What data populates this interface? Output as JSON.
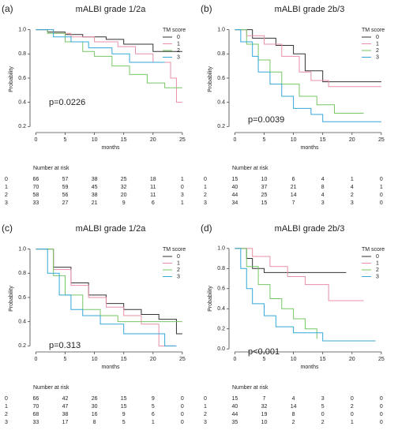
{
  "chart_data": [
    {
      "type": "line",
      "panel": "(a)",
      "title": "mALBI grade 1/2a",
      "annotation": "p=0.0226",
      "x_label": "months",
      "y_label": "Probability",
      "legend_title": "TM score",
      "xlim": [
        -1,
        26.5
      ],
      "xticks": [
        0,
        5,
        10,
        15,
        20,
        25
      ],
      "ylim": [
        0.15,
        1.03
      ],
      "yticks": [
        {
          "value": 0.2,
          "label": "0.2"
        },
        {
          "value": 0.4,
          "label": "0.4"
        },
        {
          "value": 0.6,
          "label": "0.6"
        },
        {
          "value": 0.8,
          "label": "0.8"
        },
        {
          "value": 1,
          "label": "1.0"
        }
      ],
      "series": [
        {
          "name": "0",
          "color": "#333333",
          "x": [
            0,
            2,
            5,
            8,
            12,
            15,
            20,
            25
          ],
          "values": [
            1,
            0.98,
            0.96,
            0.94,
            0.92,
            0.88,
            0.82,
            0.82
          ]
        },
        {
          "name": "1",
          "color": "#e88fa5",
          "x": [
            0,
            3,
            6,
            10,
            14,
            17,
            20,
            23,
            24,
            25
          ],
          "values": [
            1,
            0.97,
            0.94,
            0.9,
            0.86,
            0.8,
            0.73,
            0.6,
            0.4,
            0.4
          ]
        },
        {
          "name": "2",
          "color": "#77c766",
          "x": [
            0,
            2,
            5,
            8,
            10,
            13,
            16,
            19,
            22,
            25
          ],
          "values": [
            1,
            0.97,
            0.9,
            0.82,
            0.78,
            0.7,
            0.63,
            0.56,
            0.52,
            0.52
          ]
        },
        {
          "name": "3",
          "color": "#33a8d8",
          "x": [
            0,
            3,
            6,
            9,
            13,
            16,
            22
          ],
          "values": [
            1,
            0.94,
            0.9,
            0.85,
            0.8,
            0.73,
            0.73
          ]
        }
      ],
      "risk_table": {
        "title": "Number at risk",
        "rows": [
          [
            66,
            57,
            38,
            25,
            18,
            1
          ],
          [
            70,
            59,
            45,
            32,
            11,
            0
          ],
          [
            58,
            56,
            38,
            20,
            11,
            3
          ],
          [
            33,
            27,
            21,
            9,
            6,
            1
          ]
        ]
      }
    },
    {
      "type": "line",
      "panel": "(b)",
      "title": "mALBI grade 2b/3",
      "annotation": "p=0.0039",
      "x_label": "months",
      "y_label": "Probability",
      "legend_title": "TM score",
      "xlim": [
        -1,
        26.5
      ],
      "xticks": [
        0,
        5,
        10,
        15,
        20,
        25
      ],
      "ylim": [
        0.15,
        1.03
      ],
      "yticks": [
        {
          "value": 0.2,
          "label": "0.2"
        },
        {
          "value": 0.4,
          "label": "0.4"
        },
        {
          "value": 0.6,
          "label": "0.6"
        },
        {
          "value": 0.8,
          "label": "0.8"
        },
        {
          "value": 1,
          "label": "1.0"
        }
      ],
      "series": [
        {
          "name": "0",
          "color": "#333333",
          "x": [
            0,
            3,
            7,
            10,
            12,
            15,
            25
          ],
          "values": [
            1,
            0.93,
            0.87,
            0.8,
            0.66,
            0.57,
            0.57
          ]
        },
        {
          "name": "1",
          "color": "#e88fa5",
          "x": [
            0,
            2,
            5,
            8,
            11,
            13,
            16,
            25
          ],
          "values": [
            1,
            0.95,
            0.88,
            0.78,
            0.65,
            0.58,
            0.53,
            0.53
          ]
        },
        {
          "name": "2",
          "color": "#77c766",
          "x": [
            0,
            2,
            4,
            6,
            8,
            11,
            14,
            17,
            22
          ],
          "values": [
            1,
            0.88,
            0.75,
            0.65,
            0.55,
            0.45,
            0.38,
            0.31,
            0.31
          ]
        },
        {
          "name": "3",
          "color": "#33a8d8",
          "x": [
            0,
            1,
            3,
            4,
            6,
            8,
            10,
            13,
            15,
            25
          ],
          "values": [
            1,
            0.9,
            0.78,
            0.65,
            0.55,
            0.45,
            0.35,
            0.3,
            0.24,
            0.24
          ]
        }
      ],
      "risk_table": {
        "title": "Number at risk",
        "rows": [
          [
            15,
            10,
            6,
            4,
            1,
            0
          ],
          [
            40,
            37,
            21,
            8,
            4,
            1
          ],
          [
            44,
            25,
            14,
            4,
            2,
            0
          ],
          [
            34,
            15,
            7,
            3,
            3,
            0
          ]
        ]
      }
    },
    {
      "type": "line",
      "panel": "(c)",
      "title": "mALBI grade 1/2a",
      "annotation": "p=0.313",
      "x_label": "months",
      "y_label": "Probability",
      "legend_title": "TM score",
      "xlim": [
        -1,
        26.5
      ],
      "xticks": [
        0,
        5,
        10,
        15,
        20,
        25
      ],
      "ylim": [
        0.15,
        1.03
      ],
      "yticks": [
        {
          "value": 0.2,
          "label": "0.2"
        },
        {
          "value": 0.4,
          "label": "0.4"
        },
        {
          "value": 0.6,
          "label": "0.6"
        },
        {
          "value": 0.8,
          "label": "0.8"
        },
        {
          "value": 1,
          "label": "1.0"
        }
      ],
      "series": [
        {
          "name": "0",
          "color": "#333333",
          "x": [
            0,
            3,
            6,
            9,
            12,
            15,
            18,
            21,
            24,
            25
          ],
          "values": [
            1,
            0.85,
            0.72,
            0.62,
            0.55,
            0.5,
            0.46,
            0.42,
            0.3,
            0.3
          ]
        },
        {
          "name": "1",
          "color": "#e88fa5",
          "x": [
            0,
            3,
            6,
            9,
            12,
            15,
            18,
            21,
            24
          ],
          "values": [
            1,
            0.83,
            0.7,
            0.6,
            0.52,
            0.45,
            0.38,
            0.2,
            0.2
          ]
        },
        {
          "name": "2",
          "color": "#77c766",
          "x": [
            0,
            3,
            5,
            8,
            11,
            14,
            20,
            25
          ],
          "values": [
            1,
            0.78,
            0.62,
            0.5,
            0.45,
            0.4,
            0.4,
            0.4
          ]
        },
        {
          "name": "3",
          "color": "#33a8d8",
          "x": [
            0,
            2,
            4,
            6,
            8,
            11,
            15,
            20,
            22,
            24
          ],
          "values": [
            1,
            0.8,
            0.62,
            0.5,
            0.45,
            0.38,
            0.3,
            0.3,
            0.2,
            0.2
          ]
        }
      ],
      "risk_table": {
        "title": "Number at risk",
        "rows": [
          [
            66,
            42,
            26,
            15,
            9,
            0
          ],
          [
            70,
            47,
            30,
            15,
            5,
            0
          ],
          [
            68,
            38,
            16,
            9,
            6,
            0
          ],
          [
            33,
            17,
            8,
            5,
            1,
            0
          ]
        ]
      }
    },
    {
      "type": "line",
      "panel": "(d)",
      "title": "mALBI grade 2b/3",
      "annotation": "p<0.001",
      "x_label": "months",
      "y_label": "Probability",
      "legend_title": "TM score",
      "xlim": [
        -1,
        26.5
      ],
      "xticks": [
        0,
        5,
        10,
        15,
        20,
        25
      ],
      "ylim": [
        -0.03,
        1.03
      ],
      "yticks": [
        {
          "value": 0,
          "label": "0.0"
        },
        {
          "value": 0.2,
          "label": "0.2"
        },
        {
          "value": 0.4,
          "label": "0.4"
        },
        {
          "value": 0.6,
          "label": "0.6"
        },
        {
          "value": 0.8,
          "label": "0.8"
        },
        {
          "value": 1,
          "label": "1.0"
        }
      ],
      "series": [
        {
          "name": "0",
          "color": "#333333",
          "x": [
            0,
            2,
            3,
            5,
            19
          ],
          "values": [
            1,
            0.9,
            0.8,
            0.76,
            0.76
          ]
        },
        {
          "name": "1",
          "color": "#e88fa5",
          "x": [
            0,
            3,
            6,
            9,
            12,
            16,
            22
          ],
          "values": [
            1,
            0.92,
            0.82,
            0.72,
            0.64,
            0.48,
            0.48
          ]
        },
        {
          "name": "2",
          "color": "#77c766",
          "x": [
            0,
            2,
            4,
            6,
            8,
            10,
            12,
            14
          ],
          "values": [
            1,
            0.82,
            0.64,
            0.5,
            0.4,
            0.3,
            0.2,
            0.1
          ]
        },
        {
          "name": "3",
          "color": "#33a8d8",
          "x": [
            0,
            1,
            2,
            3,
            5,
            7,
            10,
            15,
            24
          ],
          "values": [
            1,
            0.8,
            0.6,
            0.45,
            0.33,
            0.22,
            0.16,
            0.08,
            0.08
          ]
        }
      ],
      "risk_table": {
        "title": "Number at risk",
        "rows": [
          [
            15,
            7,
            4,
            3,
            0,
            0
          ],
          [
            40,
            32,
            14,
            5,
            2,
            0
          ],
          [
            44,
            19,
            8,
            0,
            0,
            0
          ],
          [
            35,
            10,
            2,
            2,
            1,
            0
          ]
        ]
      }
    }
  ]
}
